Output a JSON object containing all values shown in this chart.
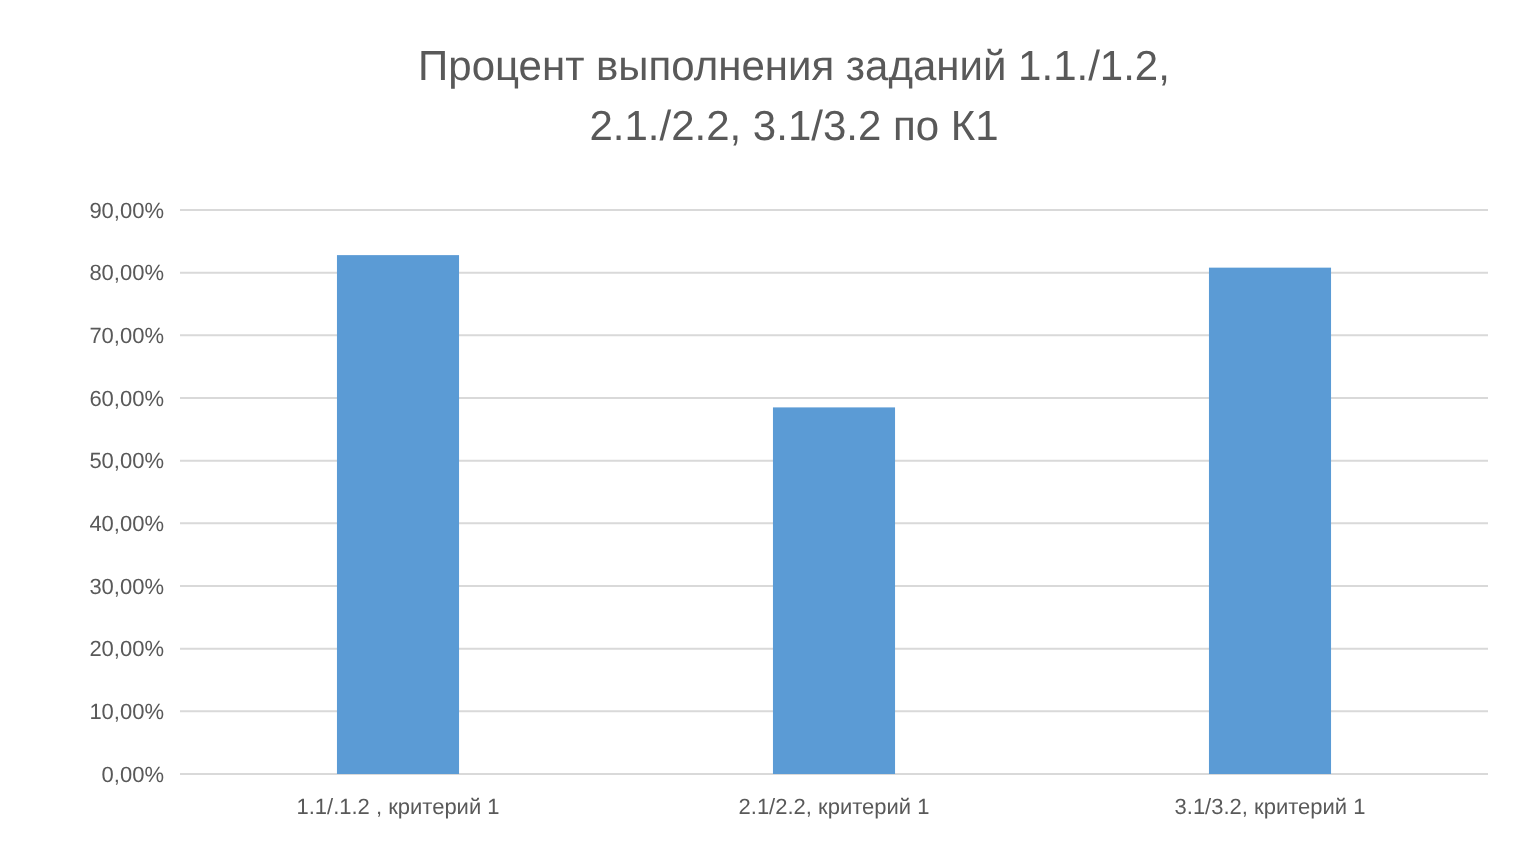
{
  "chart_data": {
    "type": "bar",
    "title": "Процент выполнения заданий 1.1./1.2,\n2.1./2.2, 3.1/3.2 по К1",
    "categories": [
      "1.1/.1.2 , критерий 1",
      "2.1/2.2, критерий 1",
      "3.1/3.2, критерий 1"
    ],
    "values": [
      82.8,
      58.5,
      80.8
    ],
    "color": "#5b9bd5",
    "ylim": [
      0,
      90
    ],
    "yticks": [
      {
        "value": 0,
        "label": "0,00%"
      },
      {
        "value": 10,
        "label": "10,00%"
      },
      {
        "value": 20,
        "label": "20,00%"
      },
      {
        "value": 30,
        "label": "30,00%"
      },
      {
        "value": 40,
        "label": "40,00%"
      },
      {
        "value": 50,
        "label": "50,00%"
      },
      {
        "value": 60,
        "label": "60,00%"
      },
      {
        "value": 70,
        "label": "70,00%"
      },
      {
        "value": 80,
        "label": "80,00%"
      },
      {
        "value": 90,
        "label": "90,00%"
      }
    ],
    "grid": "y"
  }
}
